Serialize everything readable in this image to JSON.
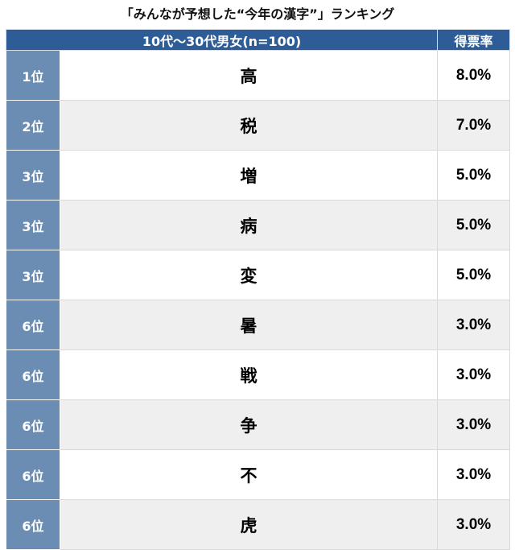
{
  "title": "「みんなが予想した“今年の漢字”」ランキング",
  "table": {
    "header": {
      "group_label": "10代〜30代男女(n=100)",
      "score_label": "得票率"
    },
    "rows": [
      {
        "rank": "1位",
        "kanji": "高",
        "share": "8.0%"
      },
      {
        "rank": "2位",
        "kanji": "税",
        "share": "7.0%"
      },
      {
        "rank": "3位",
        "kanji": "増",
        "share": "5.0%"
      },
      {
        "rank": "3位",
        "kanji": "病",
        "share": "5.0%"
      },
      {
        "rank": "3位",
        "kanji": "変",
        "share": "5.0%"
      },
      {
        "rank": "6位",
        "kanji": "暑",
        "share": "3.0%"
      },
      {
        "rank": "6位",
        "kanji": "戦",
        "share": "3.0%"
      },
      {
        "rank": "6位",
        "kanji": "争",
        "share": "3.0%"
      },
      {
        "rank": "6位",
        "kanji": "不",
        "share": "3.0%"
      },
      {
        "rank": "6位",
        "kanji": "虎",
        "share": "3.0%"
      }
    ]
  },
  "colors": {
    "header_background": "#2e5c96",
    "rank_column_background": "#6b8db3",
    "striped_row_background": "#efefef"
  }
}
